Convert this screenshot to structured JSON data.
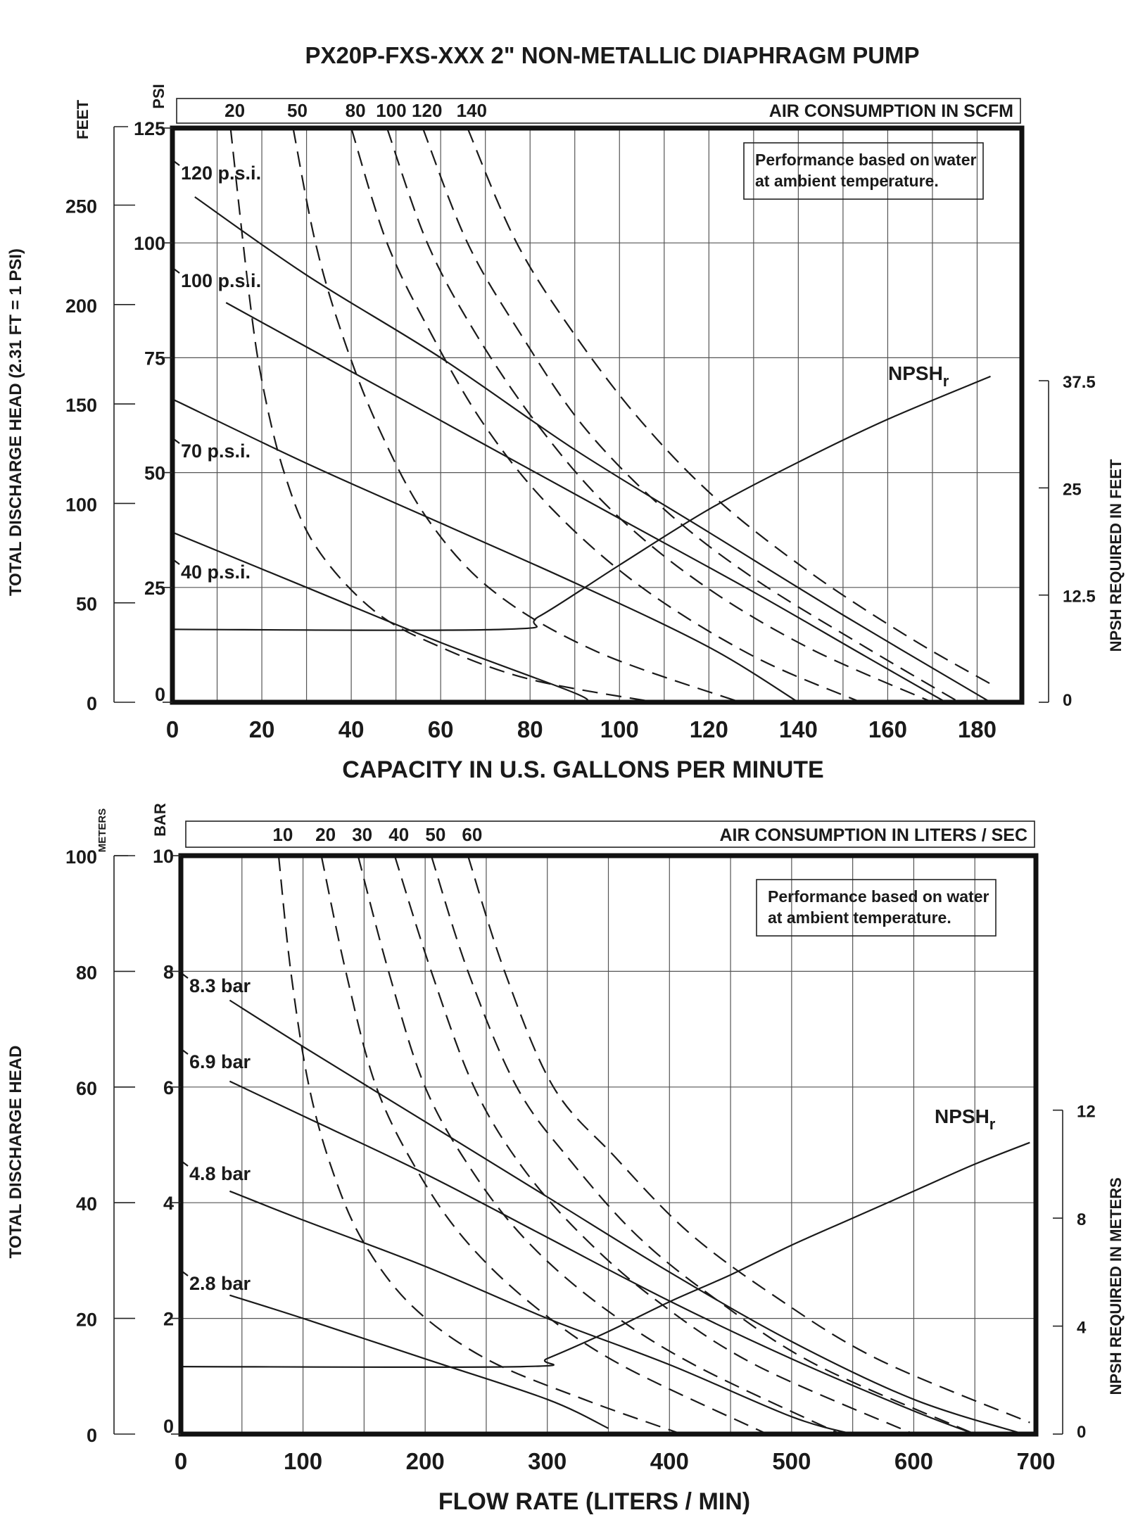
{
  "title": "PX20P-FXS-XXX 2\" NON-METALLIC DIAPHRAGM PUMP",
  "colors": {
    "ink": "#1a1a1a",
    "background": "#ffffff"
  },
  "chart_data": [
    {
      "type": "line",
      "units": "imperial",
      "xlabel": "CAPACITY IN U.S. GALLONS PER MINUTE",
      "xlim": [
        0,
        190
      ],
      "xticks": [
        "0",
        "20",
        "40",
        "60",
        "80",
        "100",
        "120",
        "140",
        "160",
        "180"
      ],
      "ylabel_psi": "PSI",
      "ylim_psi": [
        0,
        125
      ],
      "yticks_psi": [
        "0",
        "25",
        "50",
        "75",
        "100",
        "125"
      ],
      "ylabel_feet_unit": "FEET",
      "ylabel_feet": "TOTAL DISCHARGE HEAD (2.31 FT = 1 PSI)",
      "yticks_feet": [
        "0",
        "50",
        "100",
        "150",
        "200",
        "250"
      ],
      "ylabel_right": "NPSH REQUIRED IN FEET",
      "yticks_right": [
        "0",
        "12.5",
        "25",
        "37.5"
      ],
      "air_band_label": "AIR CONSUMPTION IN SCFM",
      "air_ticks": [
        "20",
        "50",
        "80",
        "100",
        "120",
        "140"
      ],
      "note_line1": "Performance based on water",
      "note_line2": "at ambient temperature.",
      "pressure_series": [
        {
          "name": "120 p.s.i.",
          "points": [
            [
              5,
              110
            ],
            [
              30,
              93
            ],
            [
              60,
              75
            ],
            [
              90,
              55
            ],
            [
              120,
              37
            ],
            [
              150,
              19
            ],
            [
              183,
              0
            ]
          ]
        },
        {
          "name": "100 p.s.i.",
          "points": [
            [
              12,
              87
            ],
            [
              40,
              72
            ],
            [
              70,
              56
            ],
            [
              100,
              40
            ],
            [
              130,
              24
            ],
            [
              155,
              10
            ],
            [
              173,
              0
            ]
          ]
        },
        {
          "name": "70 p.s.i.",
          "points": [
            [
              0,
              66
            ],
            [
              30,
              52
            ],
            [
              60,
              39
            ],
            [
              90,
              26
            ],
            [
              120,
              12
            ],
            [
              140,
              0
            ]
          ]
        },
        {
          "name": "40 p.s.i.",
          "points": [
            [
              0,
              37
            ],
            [
              30,
              25
            ],
            [
              60,
              13
            ],
            [
              90,
              2
            ],
            [
              92,
              0
            ]
          ]
        }
      ],
      "air_series": [
        {
          "name": "20",
          "points": [
            [
              13,
              125
            ],
            [
              17,
              90
            ],
            [
              20,
              70
            ],
            [
              25,
              50
            ],
            [
              32,
              34
            ],
            [
              45,
              20
            ],
            [
              60,
              12
            ],
            [
              80,
              5
            ],
            [
              108,
              0
            ]
          ]
        },
        {
          "name": "50",
          "points": [
            [
              27,
              125
            ],
            [
              32,
              100
            ],
            [
              38,
              80
            ],
            [
              46,
              60
            ],
            [
              57,
              40
            ],
            [
              72,
              24
            ],
            [
              95,
              11
            ],
            [
              127,
              0
            ]
          ]
        },
        {
          "name": "80",
          "points": [
            [
              40,
              125
            ],
            [
              48,
              100
            ],
            [
              58,
              80
            ],
            [
              70,
              60
            ],
            [
              85,
              42
            ],
            [
              105,
              25
            ],
            [
              130,
              10
            ],
            [
              154,
              0
            ]
          ]
        },
        {
          "name": "100",
          "points": [
            [
              48,
              125
            ],
            [
              57,
              100
            ],
            [
              68,
              80
            ],
            [
              82,
              60
            ],
            [
              98,
              42
            ],
            [
              118,
              26
            ],
            [
              142,
              12
            ],
            [
              170,
              0
            ]
          ]
        },
        {
          "name": "120",
          "points": [
            [
              56,
              125
            ],
            [
              66,
              100
            ],
            [
              78,
              80
            ],
            [
              92,
              60
            ],
            [
              110,
              42
            ],
            [
              130,
              27
            ],
            [
              155,
              12
            ],
            [
              176,
              0
            ]
          ]
        },
        {
          "name": "140",
          "points": [
            [
              66,
              125
            ],
            [
              77,
              100
            ],
            [
              90,
              80
            ],
            [
              105,
              61
            ],
            [
              122,
              44
            ],
            [
              143,
              28
            ],
            [
              165,
              14
            ],
            [
              183,
              4
            ]
          ]
        }
      ],
      "npsh": {
        "name": "NPSHr",
        "points": [
          [
            0,
            8.5
          ],
          [
            74,
            8.5
          ],
          [
            82,
            10
          ],
          [
            100,
            16
          ],
          [
            120,
            22.5
          ],
          [
            140,
            28
          ],
          [
            160,
            33
          ],
          [
            183,
            38
          ]
        ]
      }
    },
    {
      "type": "line",
      "units": "metric",
      "xlabel": "FLOW RATE (LITERS / MIN)",
      "xlim": [
        0,
        700
      ],
      "xticks": [
        "0",
        "100",
        "200",
        "300",
        "400",
        "500",
        "600",
        "700"
      ],
      "ylabel_bar": "BAR",
      "ylim_bar": [
        0,
        10
      ],
      "yticks_bar": [
        "0",
        "2",
        "4",
        "6",
        "8",
        "10"
      ],
      "ylabel_meters_unit": "METERS",
      "ylabel_meters": "TOTAL DISCHARGE HEAD",
      "yticks_meters": [
        "0",
        "20",
        "40",
        "60",
        "80",
        "100"
      ],
      "ylabel_right": "NPSH REQUIRED IN METERS",
      "yticks_right": [
        "0",
        "4",
        "8",
        "12"
      ],
      "air_band_label": "AIR CONSUMPTION IN LITERS / SEC",
      "air_ticks": [
        "10",
        "20",
        "30",
        "40",
        "50",
        "60"
      ],
      "note_line1": "Performance based on water",
      "note_line2": "at ambient temperature.",
      "pressure_series": [
        {
          "name": "8.3 bar",
          "points": [
            [
              40,
              7.5
            ],
            [
              100,
              6.7
            ],
            [
              200,
              5.4
            ],
            [
              300,
              4.1
            ],
            [
              400,
              2.8
            ],
            [
              500,
              1.6
            ],
            [
              600,
              0.6
            ],
            [
              690,
              0
            ]
          ]
        },
        {
          "name": "6.9 bar",
          "points": [
            [
              40,
              6.1
            ],
            [
              100,
              5.5
            ],
            [
              200,
              4.5
            ],
            [
              300,
              3.4
            ],
            [
              400,
              2.3
            ],
            [
              500,
              1.3
            ],
            [
              600,
              0.4
            ],
            [
              650,
              0
            ]
          ]
        },
        {
          "name": "4.8 bar",
          "points": [
            [
              40,
              4.2
            ],
            [
              100,
              3.7
            ],
            [
              200,
              2.9
            ],
            [
              300,
              2.0
            ],
            [
              400,
              1.2
            ],
            [
              500,
              0.3
            ],
            [
              550,
              0
            ]
          ]
        },
        {
          "name": "2.8 bar",
          "points": [
            [
              40,
              2.4
            ],
            [
              100,
              2.0
            ],
            [
              200,
              1.3
            ],
            [
              300,
              0.6
            ],
            [
              350,
              0.1
            ]
          ]
        }
      ],
      "air_series": [
        {
          "name": "10",
          "points": [
            [
              80,
              10
            ],
            [
              90,
              8
            ],
            [
              105,
              6
            ],
            [
              125,
              4.5
            ],
            [
              150,
              3.3
            ],
            [
              190,
              2.2
            ],
            [
              250,
              1.3
            ],
            [
              330,
              0.6
            ],
            [
              410,
              0
            ]
          ]
        },
        {
          "name": "20",
          "points": [
            [
              115,
              10
            ],
            [
              135,
              8
            ],
            [
              160,
              6
            ],
            [
              195,
              4.5
            ],
            [
              235,
              3.3
            ],
            [
              290,
              2.2
            ],
            [
              360,
              1.2
            ],
            [
              480,
              0
            ]
          ]
        },
        {
          "name": "30",
          "points": [
            [
              145,
              10
            ],
            [
              170,
              8
            ],
            [
              200,
              6
            ],
            [
              240,
              4.5
            ],
            [
              285,
              3.3
            ],
            [
              345,
              2.2
            ],
            [
              420,
              1.2
            ],
            [
              540,
              0
            ]
          ]
        },
        {
          "name": "40",
          "points": [
            [
              175,
              10
            ],
            [
              205,
              8
            ],
            [
              240,
              6
            ],
            [
              280,
              4.6
            ],
            [
              330,
              3.4
            ],
            [
              390,
              2.3
            ],
            [
              470,
              1.2
            ],
            [
              600,
              0
            ]
          ]
        },
        {
          "name": "50",
          "points": [
            [
              205,
              10
            ],
            [
              235,
              8
            ],
            [
              275,
              6
            ],
            [
              320,
              4.7
            ],
            [
              375,
              3.4
            ],
            [
              440,
              2.3
            ],
            [
              520,
              1.2
            ],
            [
              650,
              0
            ]
          ]
        },
        {
          "name": "60",
          "points": [
            [
              235,
              10
            ],
            [
              265,
              8
            ],
            [
              305,
              6
            ],
            [
              355,
              4.8
            ],
            [
              415,
              3.5
            ],
            [
              485,
              2.4
            ],
            [
              570,
              1.3
            ],
            [
              695,
              0.2
            ]
          ]
        }
      ],
      "npsh": {
        "name": "NPSHr",
        "points": [
          [
            0,
            2.5
          ],
          [
            280,
            2.5
          ],
          [
            300,
            2.8
          ],
          [
            350,
            3.8
          ],
          [
            400,
            4.9
          ],
          [
            450,
            5.9
          ],
          [
            500,
            7.0
          ],
          [
            550,
            8.0
          ],
          [
            600,
            9.0
          ],
          [
            650,
            10.0
          ],
          [
            695,
            10.8
          ]
        ]
      }
    }
  ]
}
